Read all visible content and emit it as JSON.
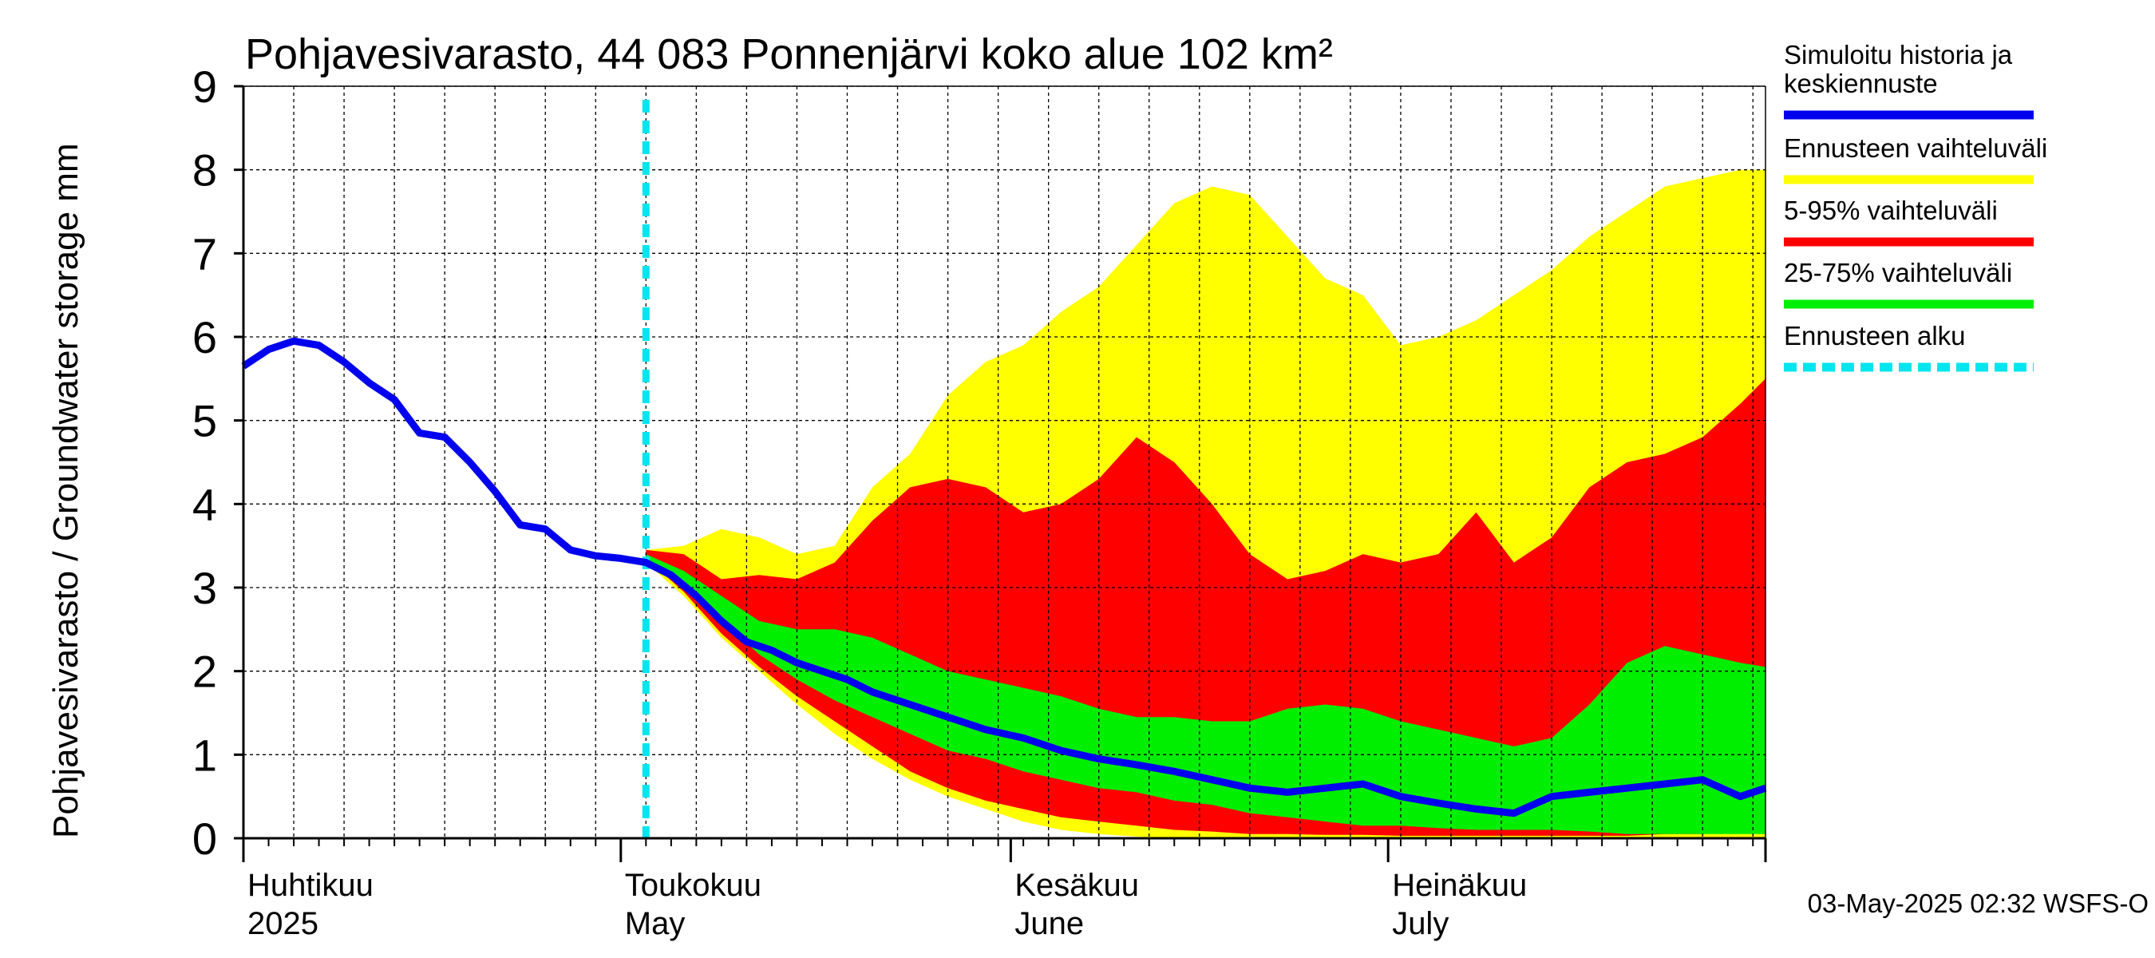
{
  "chart_data": {
    "type": "area",
    "title": "Pohjavesivarasto, 44 083 Ponnenjärvi koko alue 102 km²",
    "ylabel": "Pohjavesivarasto / Groundwater storage   mm",
    "ylim": [
      0,
      9
    ],
    "yticks": [
      0,
      1,
      2,
      3,
      4,
      5,
      6,
      7,
      8,
      9
    ],
    "xlim": [
      "2025-04-01",
      "2025-07-31"
    ],
    "x_month_labels": [
      {
        "fi": "Huhtikuu",
        "en": "2025",
        "date": "2025-04-01"
      },
      {
        "fi": "Toukokuu",
        "en": "May",
        "date": "2025-05-01"
      },
      {
        "fi": "Kesäkuu",
        "en": "June",
        "date": "2025-06-01"
      },
      {
        "fi": "Heinäkuu",
        "en": "July",
        "date": "2025-07-01"
      }
    ],
    "grid": true,
    "legend_position": "right",
    "forecast_start": "2025-05-03",
    "timestamp": "03-May-2025 02:32 WSFS-O",
    "series": [
      {
        "name": "Simuloitu historia ja keskiennuste",
        "color": "#0000ee",
        "x": [
          "2025-04-01",
          "2025-04-03",
          "2025-04-05",
          "2025-04-07",
          "2025-04-09",
          "2025-04-11",
          "2025-04-13",
          "2025-04-15",
          "2025-04-17",
          "2025-04-19",
          "2025-04-21",
          "2025-04-23",
          "2025-04-25",
          "2025-04-27",
          "2025-04-29",
          "2025-05-01",
          "2025-05-03",
          "2025-05-05",
          "2025-05-07",
          "2025-05-09",
          "2025-05-11",
          "2025-05-13",
          "2025-05-15",
          "2025-05-17",
          "2025-05-19",
          "2025-05-21",
          "2025-05-24",
          "2025-05-27",
          "2025-05-30",
          "2025-06-02",
          "2025-06-05",
          "2025-06-08",
          "2025-06-11",
          "2025-06-14",
          "2025-06-17",
          "2025-06-20",
          "2025-06-23",
          "2025-06-26",
          "2025-06-29",
          "2025-07-02",
          "2025-07-05",
          "2025-07-08",
          "2025-07-11",
          "2025-07-14",
          "2025-07-17",
          "2025-07-20",
          "2025-07-23",
          "2025-07-26",
          "2025-07-29",
          "2025-07-31"
        ],
        "y": [
          5.65,
          5.85,
          5.95,
          5.9,
          5.7,
          5.45,
          5.25,
          4.85,
          4.8,
          4.5,
          4.15,
          3.75,
          3.7,
          3.45,
          3.38,
          3.35,
          3.3,
          3.15,
          2.9,
          2.6,
          2.35,
          2.25,
          2.1,
          2.0,
          1.9,
          1.75,
          1.6,
          1.45,
          1.3,
          1.2,
          1.05,
          0.95,
          0.88,
          0.8,
          0.7,
          0.6,
          0.55,
          0.6,
          0.65,
          0.5,
          0.42,
          0.35,
          0.3,
          0.5,
          0.55,
          0.6,
          0.65,
          0.7,
          0.5,
          0.6
        ]
      },
      {
        "name": "Ennusteen vaihteluväli",
        "color": "#ffff00",
        "x": [
          "2025-05-03",
          "2025-05-06",
          "2025-05-09",
          "2025-05-12",
          "2025-05-15",
          "2025-05-18",
          "2025-05-21",
          "2025-05-24",
          "2025-05-27",
          "2025-05-30",
          "2025-06-02",
          "2025-06-05",
          "2025-06-08",
          "2025-06-11",
          "2025-06-14",
          "2025-06-17",
          "2025-06-20",
          "2025-06-23",
          "2025-06-26",
          "2025-06-29",
          "2025-07-02",
          "2025-07-05",
          "2025-07-08",
          "2025-07-11",
          "2025-07-14",
          "2025-07-17",
          "2025-07-20",
          "2025-07-23",
          "2025-07-26",
          "2025-07-29",
          "2025-07-31"
        ],
        "upper": [
          3.45,
          3.5,
          3.7,
          3.6,
          3.4,
          3.5,
          4.2,
          4.6,
          5.3,
          5.7,
          5.9,
          6.3,
          6.6,
          7.1,
          7.6,
          7.8,
          7.7,
          7.2,
          6.7,
          6.5,
          5.9,
          6.0,
          6.2,
          6.5,
          6.8,
          7.2,
          7.5,
          7.8,
          7.9,
          8.0,
          8.0
        ],
        "lower": [
          3.3,
          2.9,
          2.4,
          2.0,
          1.6,
          1.25,
          0.95,
          0.7,
          0.5,
          0.35,
          0.2,
          0.1,
          0.05,
          0.02,
          0.0,
          0.0,
          0.0,
          0.0,
          0.0,
          0.0,
          0.0,
          0.0,
          0.0,
          0.0,
          0.0,
          0.0,
          0.0,
          0.0,
          0.0,
          0.0,
          0.0
        ]
      },
      {
        "name": "5-95% vaihteluväli",
        "color": "#ff0000",
        "x": [
          "2025-05-03",
          "2025-05-06",
          "2025-05-09",
          "2025-05-12",
          "2025-05-15",
          "2025-05-18",
          "2025-05-21",
          "2025-05-24",
          "2025-05-27",
          "2025-05-30",
          "2025-06-02",
          "2025-06-05",
          "2025-06-08",
          "2025-06-11",
          "2025-06-14",
          "2025-06-17",
          "2025-06-20",
          "2025-06-23",
          "2025-06-26",
          "2025-06-29",
          "2025-07-02",
          "2025-07-05",
          "2025-07-08",
          "2025-07-11",
          "2025-07-14",
          "2025-07-17",
          "2025-07-20",
          "2025-07-23",
          "2025-07-26",
          "2025-07-29",
          "2025-07-31"
        ],
        "upper": [
          3.45,
          3.4,
          3.1,
          3.15,
          3.1,
          3.3,
          3.8,
          4.2,
          4.3,
          4.2,
          3.9,
          4.0,
          4.3,
          4.8,
          4.5,
          4.0,
          3.4,
          3.1,
          3.2,
          3.4,
          3.3,
          3.4,
          3.9,
          3.3,
          3.6,
          4.2,
          4.5,
          4.6,
          4.8,
          5.2,
          5.5
        ],
        "lower": [
          3.35,
          2.95,
          2.45,
          2.05,
          1.7,
          1.4,
          1.1,
          0.8,
          0.6,
          0.45,
          0.35,
          0.25,
          0.2,
          0.15,
          0.1,
          0.08,
          0.05,
          0.05,
          0.04,
          0.04,
          0.03,
          0.03,
          0.03,
          0.03,
          0.03,
          0.03,
          0.03,
          0.05,
          0.05,
          0.08,
          0.1
        ]
      },
      {
        "name": "25-75% vaihteluväli",
        "color": "#00ee00",
        "x": [
          "2025-05-03",
          "2025-05-06",
          "2025-05-09",
          "2025-05-12",
          "2025-05-15",
          "2025-05-18",
          "2025-05-21",
          "2025-05-24",
          "2025-05-27",
          "2025-05-30",
          "2025-06-02",
          "2025-06-05",
          "2025-06-08",
          "2025-06-11",
          "2025-06-14",
          "2025-06-17",
          "2025-06-20",
          "2025-06-23",
          "2025-06-26",
          "2025-06-29",
          "2025-07-02",
          "2025-07-05",
          "2025-07-08",
          "2025-07-11",
          "2025-07-14",
          "2025-07-17",
          "2025-07-20",
          "2025-07-23",
          "2025-07-26",
          "2025-07-29",
          "2025-07-31"
        ],
        "upper": [
          3.4,
          3.2,
          2.9,
          2.6,
          2.5,
          2.5,
          2.4,
          2.2,
          2.0,
          1.9,
          1.8,
          1.7,
          1.55,
          1.45,
          1.45,
          1.4,
          1.4,
          1.55,
          1.6,
          1.55,
          1.4,
          1.3,
          1.2,
          1.1,
          1.2,
          1.6,
          2.1,
          2.3,
          2.2,
          2.1,
          2.05
        ],
        "lower": [
          3.35,
          3.05,
          2.6,
          2.2,
          1.9,
          1.65,
          1.45,
          1.25,
          1.05,
          0.95,
          0.8,
          0.7,
          0.6,
          0.55,
          0.45,
          0.4,
          0.3,
          0.25,
          0.2,
          0.15,
          0.15,
          0.12,
          0.1,
          0.1,
          0.1,
          0.08,
          0.05,
          0.05,
          0.05,
          0.05,
          0.05
        ]
      },
      {
        "name": "Ennusteen alku",
        "color": "#00e5ee"
      }
    ]
  }
}
